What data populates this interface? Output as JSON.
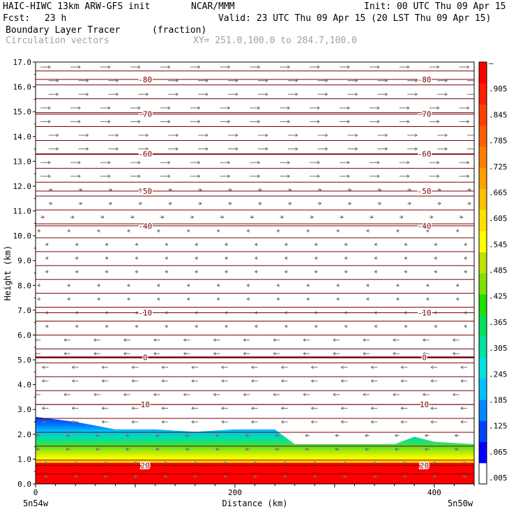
{
  "header": {
    "model": "HAIC-HIWC 13km ARW-GFS init",
    "org": "NCAR/MMM",
    "init": "Init: 00 UTC Thu 09 Apr 15",
    "fcst_label": "Fcst:",
    "fcst_value": "23 h",
    "valid": "Valid: 23 UTC Thu 09 Apr 15 (20 LST Thu 09 Apr 15)",
    "field1": "Boundary Layer Tracer",
    "field1_units": "(fraction)",
    "field2": "Circulation vectors",
    "xy": "XY= 251.0,100.0 to 284.7,100.0"
  },
  "chart_data": {
    "type": "heatmap",
    "title": "Boundary Layer Tracer",
    "units": "(fraction)",
    "xlabel": "Distance (km)",
    "ylabel": "Height (km)",
    "xlim": [
      0,
      440
    ],
    "ylim": [
      0,
      17
    ],
    "x_ticks": [
      0,
      200,
      400
    ],
    "y_ticks": [
      "0.0",
      "1.0",
      "2.0",
      "3.0",
      "4.0",
      "5.0",
      "6.0",
      "7.0",
      "8.0",
      "9.0",
      "10.0",
      "11.0",
      "12.0",
      "13.0",
      "14.0",
      "15.0",
      "16.0",
      "17.0"
    ],
    "x_end_labels": [
      "5n54w",
      "5n50w"
    ],
    "colorbar_labels": [
      ".005",
      ".065",
      ".125",
      ".185",
      ".245",
      ".305",
      ".365",
      ".425",
      ".485",
      ".545",
      ".605",
      ".665",
      ".725",
      ".785",
      ".845",
      ".905",
      "–"
    ],
    "colorbar_colors": [
      "#ffffff",
      "#0000ff",
      "#0044ff",
      "#0088ff",
      "#00c0ff",
      "#00e0e0",
      "#00e0a0",
      "#00e060",
      "#20e000",
      "#80e000",
      "#c0e000",
      "#ffff00",
      "#ffe000",
      "#ffc000",
      "#ffa000",
      "#ff8000",
      "#ff6000",
      "#ff4000",
      "#ff2000",
      "#ff0000"
    ],
    "temperature_contours": [
      {
        "label": "-80",
        "height_km": 16.3
      },
      {
        "label": "-70",
        "height_km": 14.9
      },
      {
        "label": "-60",
        "height_km": 13.3
      },
      {
        "label": "-50",
        "height_km": 11.8
      },
      {
        "label": "-40",
        "height_km": 10.4
      },
      {
        "label": "-10",
        "height_km": 6.9
      },
      {
        "label": "0",
        "height_km": 5.1
      },
      {
        "label": "10",
        "height_km": 3.2
      },
      {
        "label": "20",
        "height_km": 0.75
      }
    ],
    "contour_label_x_km": [
      110,
      390
    ],
    "boundary_layer_top_km": [
      [
        0,
        2.7
      ],
      [
        40,
        2.5
      ],
      [
        80,
        2.2
      ],
      [
        120,
        2.2
      ],
      [
        160,
        2.1
      ],
      [
        200,
        2.2
      ],
      [
        240,
        2.2
      ],
      [
        260,
        1.6
      ],
      [
        300,
        1.6
      ],
      [
        360,
        1.6
      ],
      [
        380,
        1.9
      ],
      [
        400,
        1.7
      ],
      [
        440,
        1.6
      ]
    ]
  }
}
